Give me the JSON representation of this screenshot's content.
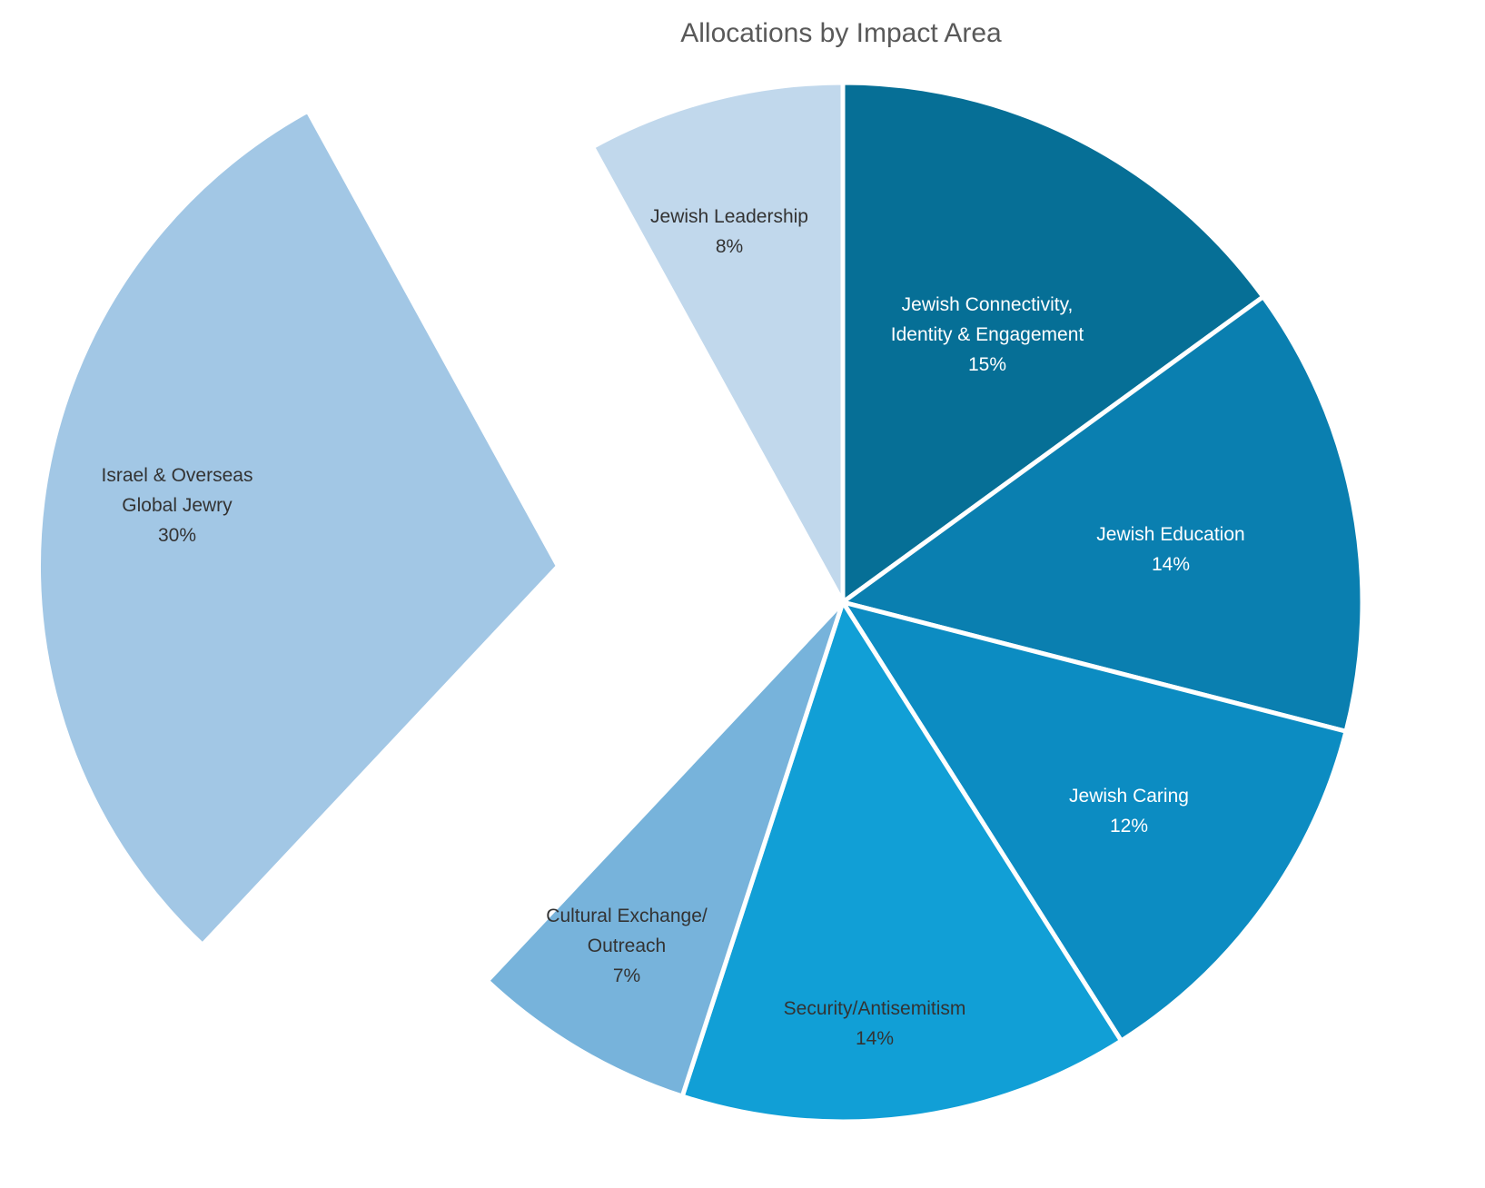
{
  "chart_data": {
    "type": "pie",
    "title": "Allocations by Impact Area",
    "start_angle": "12 o'clock",
    "direction": "clockwise",
    "slices": [
      {
        "name": "Jewish Connectivity, Identity & Engagement",
        "label_lines": [
          "Jewish Connectivity,",
          "Identity & Engagement",
          "15%"
        ],
        "value": 15,
        "color": "#066f96",
        "label_color": "#ffffff",
        "exploded": false
      },
      {
        "name": "Jewish Education",
        "label_lines": [
          "Jewish Education",
          "14%"
        ],
        "value": 14,
        "color": "#0a7fb0",
        "label_color": "#ffffff",
        "exploded": false
      },
      {
        "name": "Jewish Caring",
        "label_lines": [
          "Jewish Caring",
          "12%"
        ],
        "value": 12,
        "color": "#0c8cc2",
        "label_color": "#ffffff",
        "exploded": false
      },
      {
        "name": "Security/Antisemitism",
        "label_lines": [
          "Security/Antisemitism",
          "14%"
        ],
        "value": 14,
        "color": "#119fd6",
        "label_color": "#333333",
        "exploded": false
      },
      {
        "name": "Cultural Exchange/ Outreach",
        "label_lines": [
          "Cultural Exchange/",
          "Outreach",
          "7%"
        ],
        "value": 7,
        "color": "#77b3db",
        "label_color": "#333333",
        "exploded": false
      },
      {
        "name": "Israel & Overseas Global Jewry",
        "label_lines": [
          "Israel & Overseas",
          "Global Jewry",
          "30%"
        ],
        "value": 30,
        "color": "#a2c7e5",
        "label_color": "#333333",
        "exploded": true
      },
      {
        "name": "Jewish Leadership",
        "label_lines": [
          "Jewish Leadership",
          "8%"
        ],
        "value": 8,
        "color": "#c1d8ec",
        "label_color": "#333333",
        "exploded": false
      }
    ]
  }
}
